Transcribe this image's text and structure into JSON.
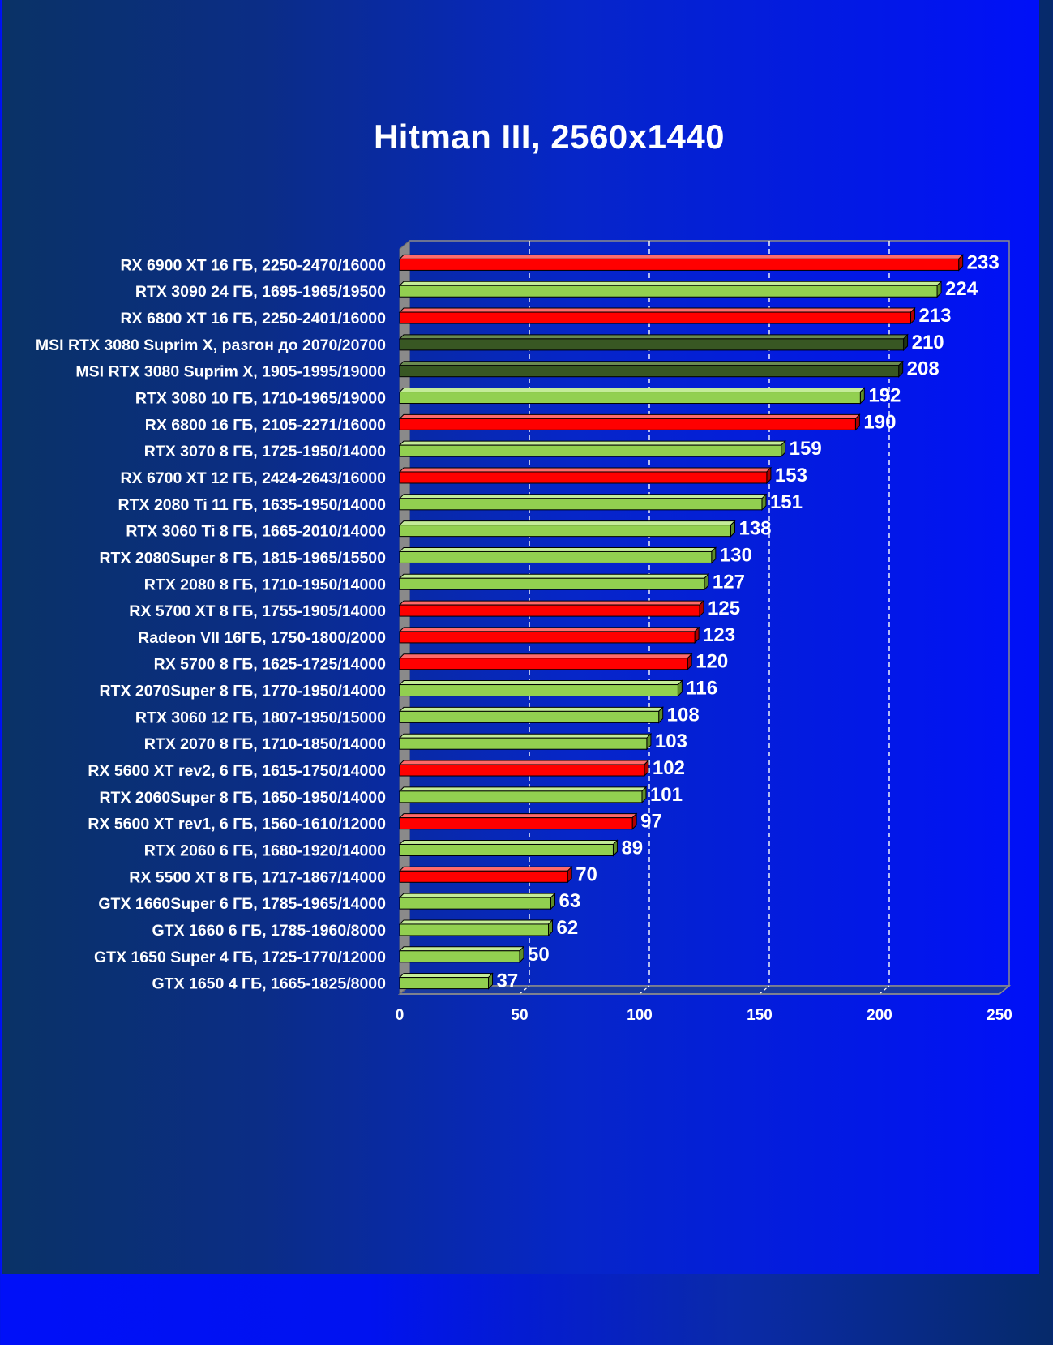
{
  "chart_data": {
    "type": "bar",
    "orientation": "horizontal",
    "title": "Hitman III, 2560x1440",
    "xlim": [
      0,
      250
    ],
    "xticks": [
      0,
      50,
      100,
      150,
      200,
      250
    ],
    "grid": true,
    "categories": [
      "RX 6900 XT 16 ГБ, 2250-2470/16000",
      "RTX 3090 24 ГБ, 1695-1965/19500",
      "RX 6800 XT 16 ГБ, 2250-2401/16000",
      "MSI RTX 3080 Suprim X, разгон до 2070/20700",
      "MSI RTX 3080 Suprim X, 1905-1995/19000",
      "RTX 3080 10 ГБ, 1710-1965/19000",
      "RX 6800 16 ГБ, 2105-2271/16000",
      "RTX 3070 8 ГБ, 1725-1950/14000",
      "RX 6700 XT 12 ГБ, 2424-2643/16000",
      "RTX 2080 Ti 11 ГБ, 1635-1950/14000",
      "RTX 3060 Ti 8 ГБ, 1665-2010/14000",
      "RTX 2080Super 8 ГБ, 1815-1965/15500",
      "RTX 2080 8 ГБ, 1710-1950/14000",
      "RX 5700 XT 8 ГБ, 1755-1905/14000",
      "Radeon VII 16ГБ, 1750-1800/2000",
      "RX 5700 8 ГБ, 1625-1725/14000",
      "RTX 2070Super 8 ГБ, 1770-1950/14000",
      "RTX 3060 12 ГБ, 1807-1950/15000",
      "RTX 2070 8 ГБ, 1710-1850/14000",
      "RX 5600 XT rev2, 6 ГБ, 1615-1750/14000",
      "RTX 2060Super 8 ГБ, 1650-1950/14000",
      "RX 5600 XT rev1, 6 ГБ, 1560-1610/12000",
      "RTX 2060 6 ГБ, 1680-1920/14000",
      "RX 5500 XT 8 ГБ, 1717-1867/14000",
      "GTX 1660Super 6 ГБ, 1785-1965/14000",
      "GTX 1660 6 ГБ, 1785-1960/8000",
      "GTX 1650 Super 4 ГБ, 1725-1770/12000",
      "GTX 1650 4 ГБ, 1665-1825/8000"
    ],
    "values": [
      233,
      224,
      213,
      210,
      208,
      192,
      190,
      159,
      153,
      151,
      138,
      130,
      127,
      125,
      123,
      120,
      116,
      108,
      103,
      102,
      101,
      97,
      89,
      70,
      63,
      62,
      50,
      37
    ],
    "bar_colors": [
      "red",
      "lightgreen",
      "red",
      "darkgreen",
      "darkgreen",
      "lightgreen",
      "red",
      "lightgreen",
      "red",
      "lightgreen",
      "lightgreen",
      "lightgreen",
      "lightgreen",
      "red",
      "red",
      "red",
      "lightgreen",
      "lightgreen",
      "lightgreen",
      "red",
      "lightgreen",
      "red",
      "lightgreen",
      "red",
      "lightgreen",
      "lightgreen",
      "lightgreen",
      "lightgreen"
    ],
    "palette": {
      "red": {
        "front": "#ff0000",
        "top": "#ff6a6a",
        "side": "#b00000"
      },
      "lightgreen": {
        "front": "#92d050",
        "top": "#c4ec98",
        "side": "#5e8e2a"
      },
      "darkgreen": {
        "front": "#385723",
        "top": "#6a8a50",
        "side": "#1e3312"
      }
    }
  }
}
